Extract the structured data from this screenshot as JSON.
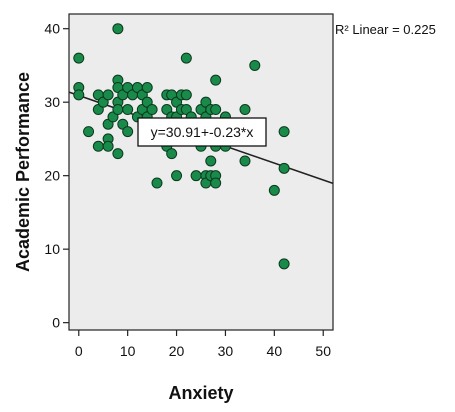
{
  "chart_data": {
    "type": "scatter",
    "title": "",
    "xlabel": "Anxiety",
    "ylabel": "Academic Performance",
    "xlim": [
      -2,
      52
    ],
    "ylim": [
      -1,
      42
    ],
    "x_ticks": [
      0,
      10,
      20,
      30,
      40,
      50
    ],
    "y_ticks": [
      0,
      10,
      20,
      30,
      40
    ],
    "fit_label": "R² Linear = 0.225",
    "equation": "y=30.91+-0.23*x",
    "fit": {
      "intercept": 30.91,
      "slope": -0.23
    },
    "colors": {
      "plot_bg": "#ececec",
      "marker_fill": "#1a8a4a",
      "marker_edge": "#0a3a1e",
      "line": "#222222"
    },
    "points": [
      [
        0,
        36
      ],
      [
        0,
        32
      ],
      [
        0,
        31
      ],
      [
        2,
        26
      ],
      [
        4,
        31
      ],
      [
        4,
        29
      ],
      [
        4,
        24
      ],
      [
        5,
        30
      ],
      [
        6,
        31
      ],
      [
        6,
        27
      ],
      [
        6,
        25
      ],
      [
        6,
        24
      ],
      [
        7,
        28
      ],
      [
        8,
        40
      ],
      [
        8,
        33
      ],
      [
        8,
        32
      ],
      [
        8,
        30
      ],
      [
        8,
        29
      ],
      [
        8,
        23
      ],
      [
        9,
        31
      ],
      [
        9,
        27
      ],
      [
        10,
        32
      ],
      [
        10,
        29
      ],
      [
        10,
        26
      ],
      [
        11,
        31
      ],
      [
        12,
        32
      ],
      [
        12,
        28
      ],
      [
        13,
        31
      ],
      [
        13,
        29
      ],
      [
        14,
        32
      ],
      [
        14,
        30
      ],
      [
        14,
        28
      ],
      [
        14,
        27
      ],
      [
        15,
        29
      ],
      [
        15,
        26
      ],
      [
        16,
        19
      ],
      [
        17,
        25
      ],
      [
        18,
        31
      ],
      [
        18,
        29
      ],
      [
        18,
        27
      ],
      [
        18,
        24
      ],
      [
        19,
        31
      ],
      [
        19,
        28
      ],
      [
        19,
        23
      ],
      [
        20,
        30
      ],
      [
        20,
        28
      ],
      [
        20,
        26
      ],
      [
        20,
        20
      ],
      [
        21,
        31
      ],
      [
        21,
        29
      ],
      [
        22,
        36
      ],
      [
        22,
        31
      ],
      [
        22,
        29
      ],
      [
        22,
        26
      ],
      [
        23,
        28
      ],
      [
        24,
        27
      ],
      [
        24,
        25
      ],
      [
        24,
        20
      ],
      [
        25,
        29
      ],
      [
        25,
        26
      ],
      [
        25,
        24
      ],
      [
        26,
        30
      ],
      [
        26,
        28
      ],
      [
        26,
        20
      ],
      [
        26,
        19
      ],
      [
        27,
        29
      ],
      [
        27,
        25
      ],
      [
        27,
        22
      ],
      [
        27,
        20
      ],
      [
        28,
        33
      ],
      [
        28,
        29
      ],
      [
        28,
        26
      ],
      [
        28,
        24
      ],
      [
        28,
        20
      ],
      [
        28,
        19
      ],
      [
        29,
        27
      ],
      [
        30,
        28
      ],
      [
        30,
        25
      ],
      [
        30,
        24
      ],
      [
        31,
        26
      ],
      [
        34,
        29
      ],
      [
        34,
        25
      ],
      [
        34,
        22
      ],
      [
        36,
        35
      ],
      [
        40,
        18
      ],
      [
        42,
        26
      ],
      [
        42,
        21
      ],
      [
        42,
        8
      ]
    ]
  }
}
